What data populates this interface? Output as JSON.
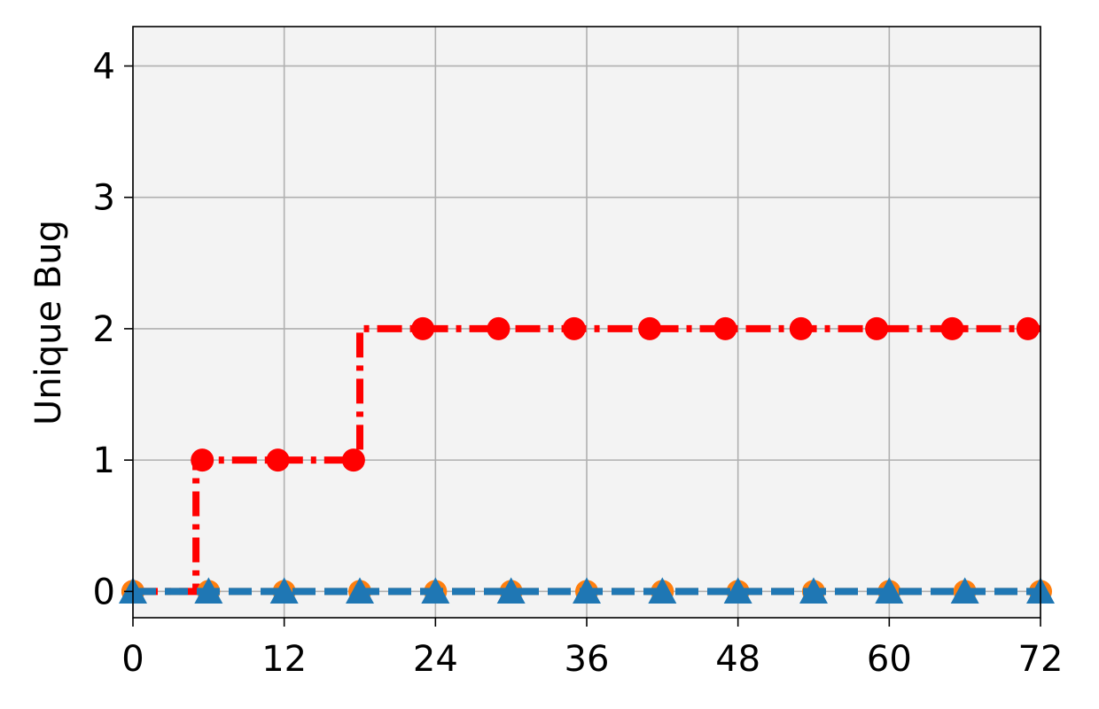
{
  "chart_data": {
    "type": "line",
    "title": "",
    "xlabel": "",
    "ylabel": "Unique Bug",
    "xlim": [
      0,
      72
    ],
    "ylim": [
      -0.2,
      4.3
    ],
    "xticks": [
      0,
      12,
      24,
      36,
      48,
      60,
      72
    ],
    "yticks": [
      0,
      1,
      2,
      3,
      4
    ],
    "grid": true,
    "step": "post",
    "series": [
      {
        "color": "#ff0000",
        "line_style": "dash-dot",
        "marker": "circle",
        "x": [
          0,
          5.5,
          11.5,
          17.5,
          23,
          29,
          35,
          41,
          47,
          53,
          59,
          65,
          71
        ],
        "values": [
          0,
          1,
          1,
          1,
          2,
          2,
          2,
          2,
          2,
          2,
          2,
          2,
          2
        ],
        "step_x": [
          0,
          5,
          18,
          72
        ],
        "step_values": [
          0,
          1,
          2,
          2
        ]
      },
      {
        "color": "#ff7f0e",
        "line_style": "dashed",
        "marker": "circle",
        "x": [
          0,
          6,
          12,
          18,
          24,
          30,
          36,
          42,
          48,
          54,
          60,
          66,
          72
        ],
        "values": [
          0,
          0,
          0,
          0,
          0,
          0,
          0,
          0,
          0,
          0,
          0,
          0,
          0
        ],
        "step_x": [
          0,
          72
        ],
        "step_values": [
          0,
          0
        ]
      },
      {
        "color": "#1f77b4",
        "line_style": "dashed",
        "marker": "triangle",
        "x": [
          0,
          6,
          12,
          18,
          24,
          30,
          36,
          42,
          48,
          54,
          60,
          66,
          72
        ],
        "values": [
          0,
          0,
          0,
          0,
          0,
          0,
          0,
          0,
          0,
          0,
          0,
          0,
          0
        ],
        "step_x": [
          0,
          72
        ],
        "step_values": [
          0,
          0
        ]
      }
    ]
  }
}
